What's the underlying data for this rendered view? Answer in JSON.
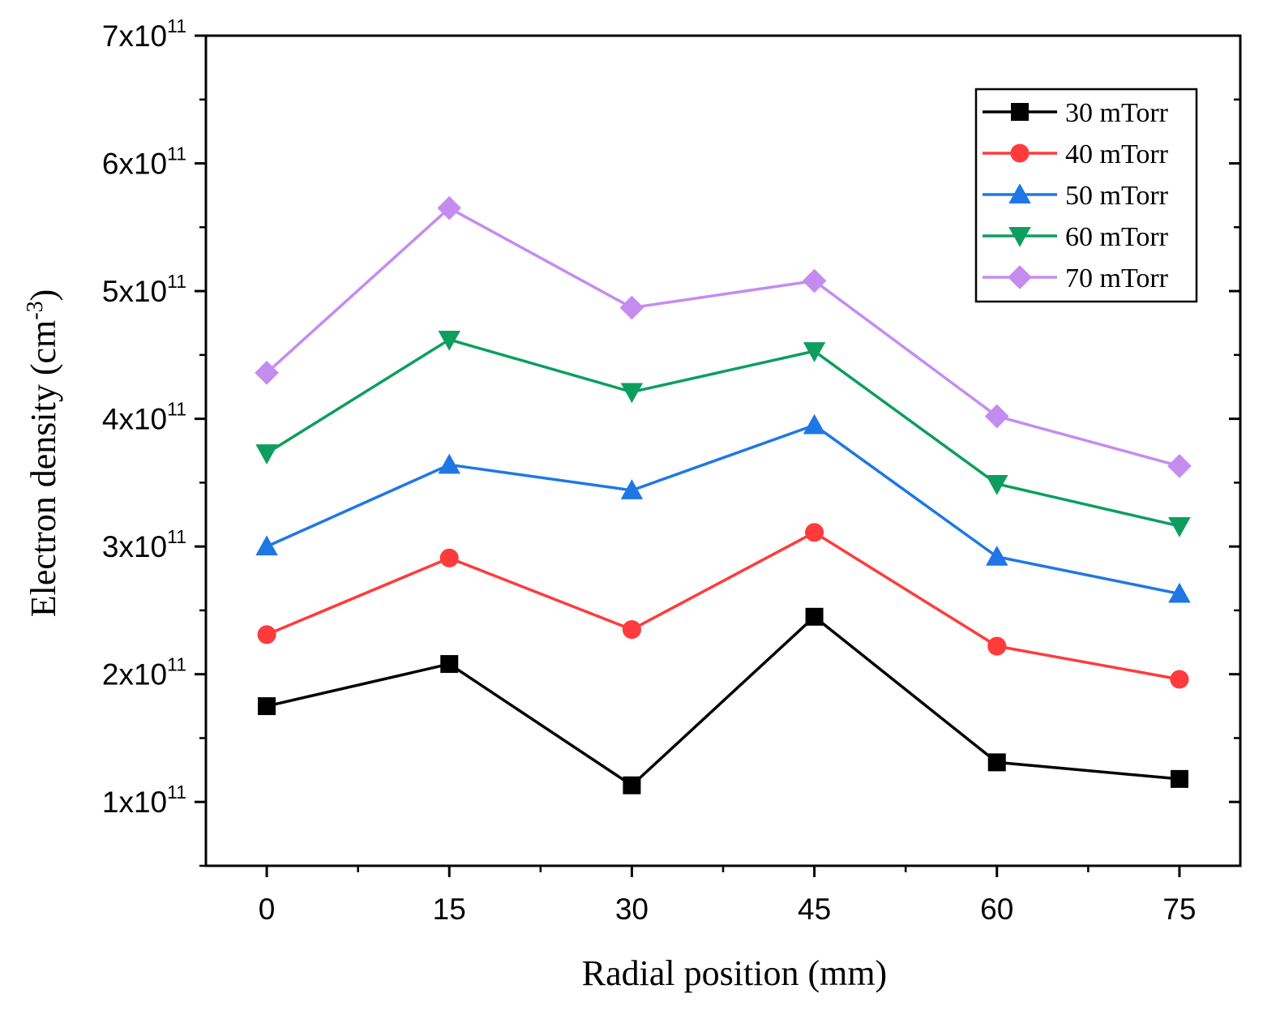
{
  "chart_data": {
    "type": "line",
    "title": "",
    "xlabel": "Radial position (mm)",
    "ylabel": {
      "base": "Electron density (cm",
      "sup": "-3",
      "close": ")"
    },
    "x": [
      0,
      15,
      30,
      45,
      60,
      75
    ],
    "x_ticks": [
      "0",
      "15",
      "30",
      "45",
      "60",
      "75"
    ],
    "xlim": [
      -5,
      80
    ],
    "ylim": [
      50000000000.0,
      700000000000.0
    ],
    "y_ticks": [
      {
        "value": 100000000000.0,
        "mantissa": "1x10",
        "exp": "11"
      },
      {
        "value": 200000000000.0,
        "mantissa": "2x10",
        "exp": "11"
      },
      {
        "value": 300000000000.0,
        "mantissa": "3x10",
        "exp": "11"
      },
      {
        "value": 400000000000.0,
        "mantissa": "4x10",
        "exp": "11"
      },
      {
        "value": 500000000000.0,
        "mantissa": "5x10",
        "exp": "11"
      },
      {
        "value": 600000000000.0,
        "mantissa": "6x10",
        "exp": "11"
      },
      {
        "value": 700000000000.0,
        "mantissa": "7x10",
        "exp": "11"
      }
    ],
    "grid": false,
    "legend_position": "top-right",
    "series": [
      {
        "name": "30 mTorr",
        "color": "#000000",
        "marker": "square",
        "values": [
          175000000000.0,
          208000000000.0,
          113000000000.0,
          245000000000.0,
          131000000000.0,
          118000000000.0
        ]
      },
      {
        "name": "40 mTorr",
        "color": "#ff3b3b",
        "marker": "circle",
        "values": [
          231000000000.0,
          291000000000.0,
          235000000000.0,
          311000000000.0,
          222000000000.0,
          196000000000.0
        ]
      },
      {
        "name": "50 mTorr",
        "color": "#1f77e6",
        "marker": "triangle-up",
        "values": [
          300000000000.0,
          364000000000.0,
          344000000000.0,
          395000000000.0,
          292000000000.0,
          263000000000.0
        ]
      },
      {
        "name": "60 mTorr",
        "color": "#0d9e5f",
        "marker": "triangle-down",
        "values": [
          373000000000.0,
          462000000000.0,
          421000000000.0,
          453000000000.0,
          349000000000.0,
          316000000000.0
        ]
      },
      {
        "name": "70 mTorr",
        "color": "#c58cf0",
        "marker": "diamond",
        "values": [
          436000000000.0,
          565000000000.0,
          487000000000.0,
          508000000000.0,
          402000000000.0,
          363000000000.0
        ]
      }
    ]
  }
}
